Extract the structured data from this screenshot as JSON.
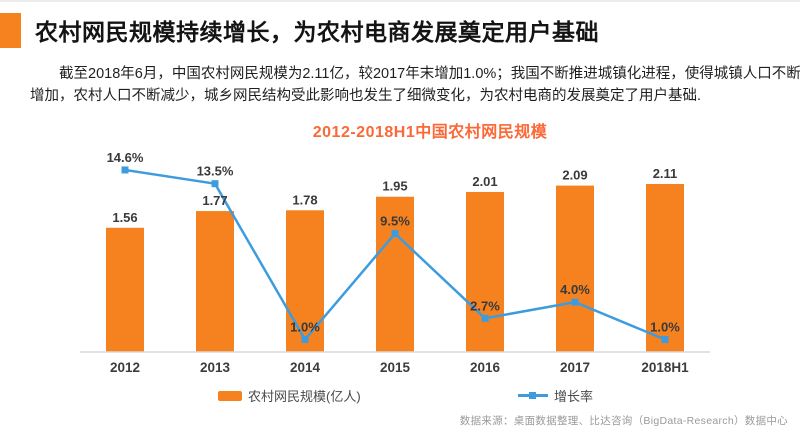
{
  "header": {
    "title": "农村网民规模持续增长，为农村电商发展奠定用户基础"
  },
  "paragraph": {
    "line1": "截至2018年6月，中国农村网民规模为2.11亿，较2017年末增加1.0%；我国不断推进城镇化进程，使得城镇人口不断",
    "line2": "增加，农村人口不断减少，城乡网民结构受此影响也发生了细微变化，为农村电商的发展奠定了用户基础."
  },
  "chart_data": {
    "type": "bar",
    "combo": "bar+line",
    "title": "2012-2018H1中国农村网民规模",
    "categories": [
      "2012",
      "2013",
      "2014",
      "2015",
      "2016",
      "2017",
      "2018H1"
    ],
    "bar_series": {
      "name": "农村网民规模(亿人)",
      "unit": "亿人",
      "values": [
        1.56,
        1.77,
        1.78,
        1.95,
        2.01,
        2.09,
        2.11
      ],
      "labels": [
        "1.56",
        "1.77",
        "1.78",
        "1.95",
        "2.01",
        "2.09",
        "2.11"
      ],
      "color": "#F5821F"
    },
    "line_series": {
      "name": "增长率",
      "unit": "%",
      "values": [
        14.6,
        13.5,
        1.0,
        9.5,
        2.7,
        4.0,
        1.0
      ],
      "labels": [
        "14.6%",
        "13.5%",
        "1.0%",
        "9.5%",
        "2.7%",
        "4.0%",
        "1.0%"
      ],
      "color": "#3E9CDE"
    },
    "ylim_bar": [
      0,
      2.65
    ],
    "ylim_line": [
      0,
      16.8
    ],
    "grid": false,
    "y_axis_visible": false,
    "legend_position": "bottom"
  },
  "footer": {
    "source": "数据来源：桌面数据整理、比达咨询（BigData-Research）数据中心"
  },
  "colors": {
    "accent_orange": "#F5821F",
    "chart_title_orange": "#FA6937",
    "line_blue": "#3E9CDE",
    "axis_gray": "#D9D9D9",
    "label_dark": "#3a3a3a",
    "source_gray": "#9A9A9A"
  }
}
